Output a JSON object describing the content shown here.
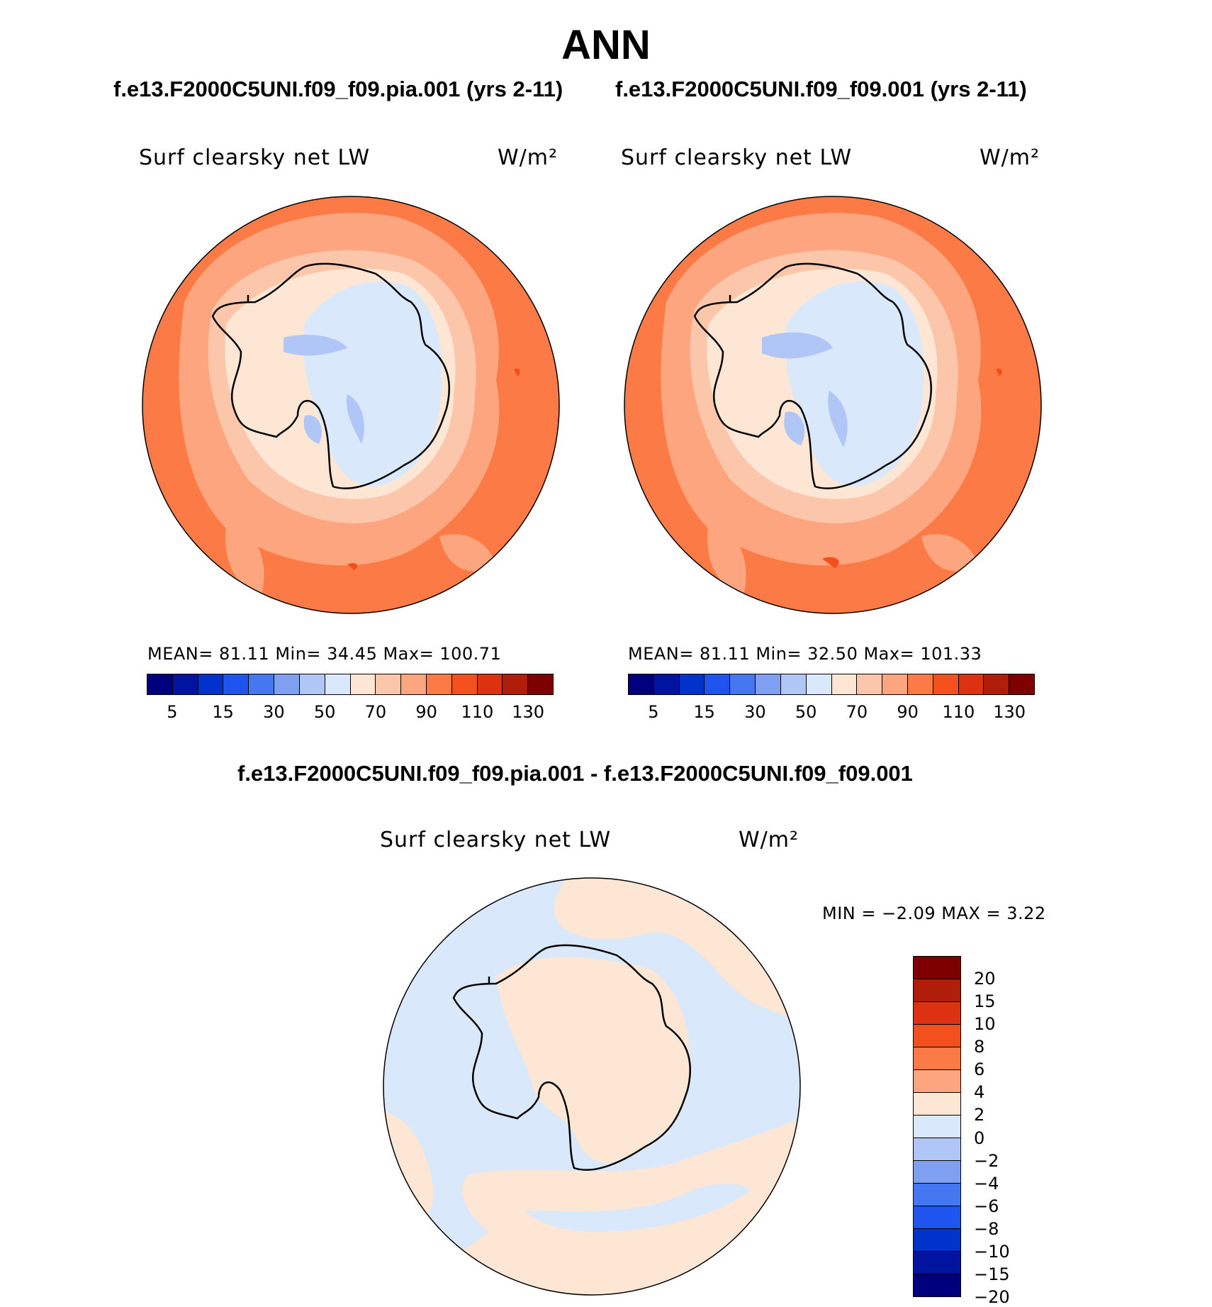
{
  "title": "ANN",
  "panels": [
    {
      "run_title": "f.e13.F2000C5UNI.f09_f09.pia.001 (yrs 2-11)",
      "variable": "Surf clearsky net LW",
      "units": "W/m²",
      "stats": "MEAN=   81.11   Min=   34.45   Max=  100.71"
    },
    {
      "run_title": "f.e13.F2000C5UNI.f09_f09.001 (yrs 2-11)",
      "variable": "Surf clearsky net LW",
      "units": "W/m²",
      "stats": "MEAN=   81.11   Min=   32.50   Max=  101.33"
    }
  ],
  "abs_colorbar": {
    "colors": [
      "#00007f",
      "#0014a0",
      "#0033cc",
      "#1f55ee",
      "#4477f0",
      "#7fa0f0",
      "#b0c6f6",
      "#d9e8fb",
      "#fde6d4",
      "#fcc6ab",
      "#fca57f",
      "#fc7a45",
      "#f4501e",
      "#dd3212",
      "#b01e0a",
      "#7f0000"
    ],
    "ticks": [
      "5",
      "15",
      "30",
      "50",
      "70",
      "90",
      "110",
      "130"
    ]
  },
  "diff_panel": {
    "title": "f.e13.F2000C5UNI.f09_f09.pia.001 - f.e13.F2000C5UNI.f09_f09.001",
    "variable": "Surf clearsky net LW",
    "units": "W/m²",
    "stats": "MIN =   −2.09  MAX =    3.22"
  },
  "diff_colorbar": {
    "colors": [
      "#7f0000",
      "#b01e0a",
      "#dd3212",
      "#f4501e",
      "#fc7a45",
      "#fca57f",
      "#fde6d4",
      "#d9e8fb",
      "#b0c6f6",
      "#7fa0f0",
      "#4477f0",
      "#1f55ee",
      "#0033cc",
      "#0014a0",
      "#00007f"
    ],
    "ticks": [
      "20",
      "15",
      "10",
      "8",
      "6",
      "4",
      "2",
      "0",
      "−2",
      "−4",
      "−6",
      "−8",
      "−10",
      "−15",
      "−20"
    ]
  },
  "map_colors": {
    "ocean_high": "#fc7a45",
    "ocean_mid": "#fca57f",
    "coast": "#fcc6ab",
    "shelf": "#fde6d4",
    "ice": "#d9e8fb",
    "ice_low": "#b0c6f6",
    "ice_lowest": "#7fa0f0",
    "hot": "#f4501e",
    "diff_neg": "#d9e8fb",
    "diff_pos": "#fde6d4"
  }
}
